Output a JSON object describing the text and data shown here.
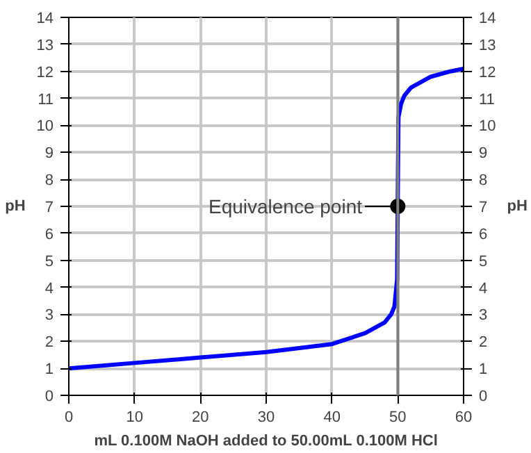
{
  "chart_data": {
    "type": "line",
    "xlabel": "mL 0.100M NaOH added to 50.00mL 0.100M HCl",
    "ylabel": "pH",
    "y2label": "pH",
    "xlim": [
      0,
      60
    ],
    "xticks": [
      0,
      10,
      20,
      30,
      40,
      50,
      60
    ],
    "ylim": [
      0,
      14
    ],
    "yticks": [
      0,
      1,
      2,
      3,
      4,
      5,
      6,
      7,
      8,
      9,
      10,
      11,
      12,
      13,
      14
    ],
    "y2lim": [
      0,
      14
    ],
    "y2ticks": [
      0,
      1,
      2,
      3,
      4,
      5,
      6,
      7,
      8,
      9,
      10,
      11,
      12,
      13,
      14
    ],
    "grid": true,
    "series": [
      {
        "color": "#0000ff",
        "x": [
          0,
          10,
          20,
          30,
          40,
          45,
          48,
          49,
          49.5,
          49.9,
          50.1,
          50.5,
          51,
          52,
          55,
          58,
          60
        ],
        "values": [
          1.0,
          1.2,
          1.4,
          1.6,
          1.9,
          2.3,
          2.7,
          3.0,
          3.3,
          4.3,
          10.3,
          10.8,
          11.1,
          11.4,
          11.8,
          12.0,
          12.1
        ]
      },
      {
        "type": "scatter",
        "color": "#000000",
        "marker": "circle",
        "x": [
          50
        ],
        "values": [
          7
        ]
      }
    ],
    "ref_lines": [
      {
        "axis": "x",
        "value": 50,
        "color": "#808080"
      }
    ],
    "annotations": [
      {
        "text": "Equivalence point",
        "x": 50,
        "y": 7
      }
    ]
  }
}
